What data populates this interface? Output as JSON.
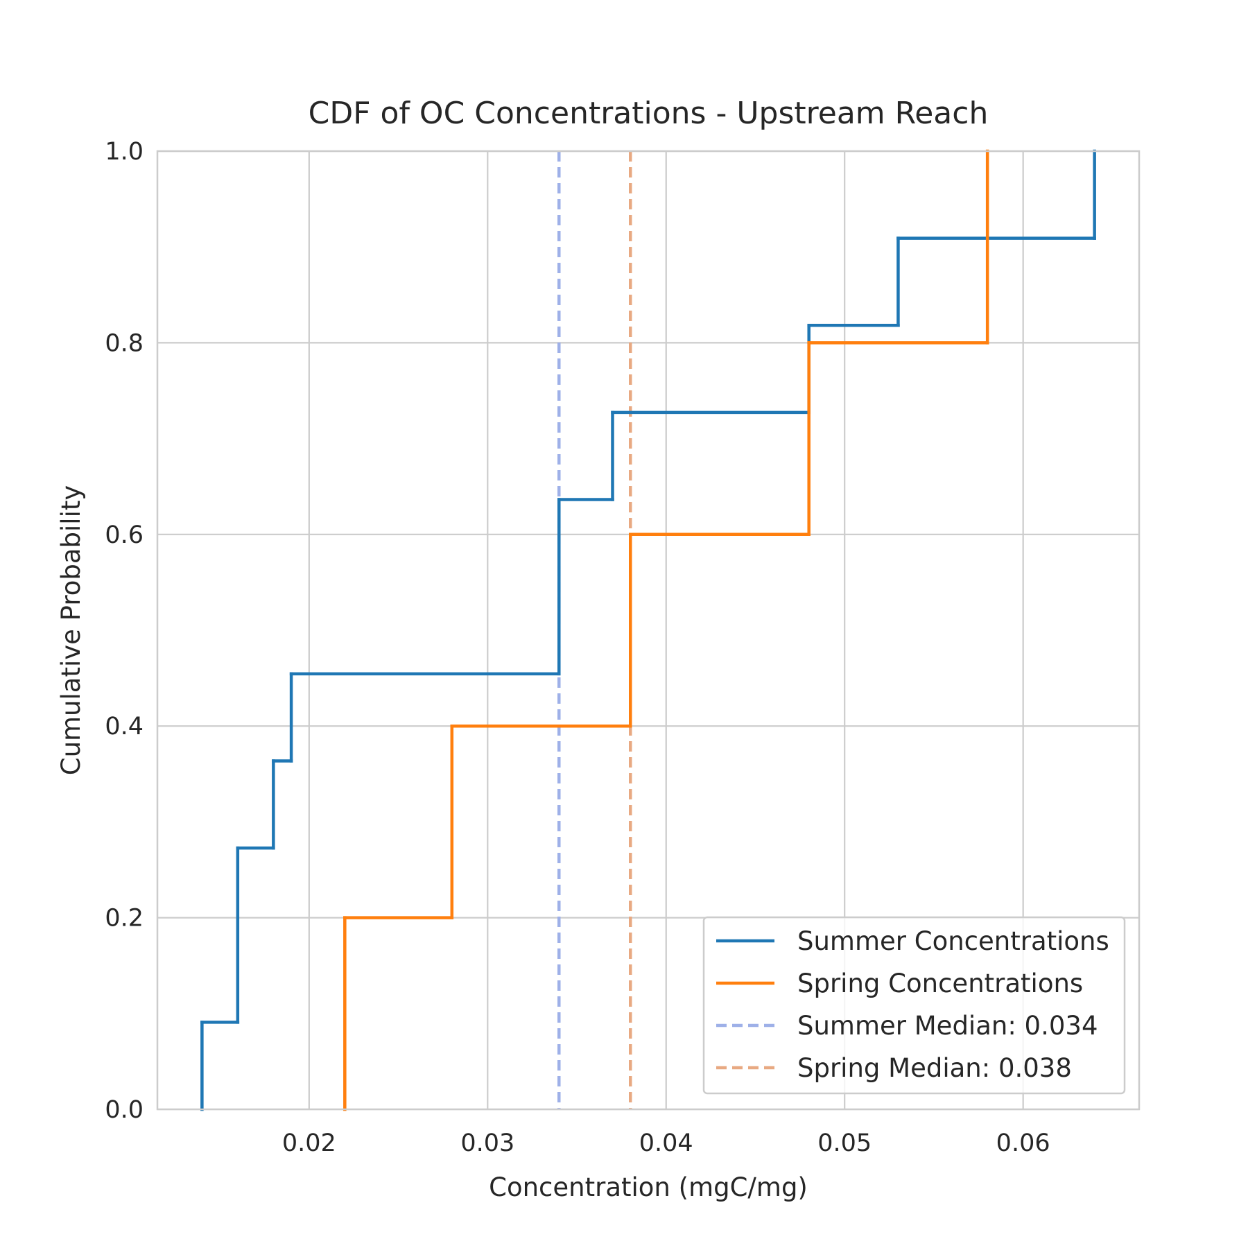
{
  "chart_data": {
    "type": "line",
    "title": "CDF of OC Concentrations - Upstream Reach",
    "xlabel": "Concentration (mgC/mg)",
    "ylabel": "Cumulative Probability",
    "xlim": [
      0.0115,
      0.0665
    ],
    "ylim": [
      0.0,
      1.0
    ],
    "xticks": [
      0.02,
      0.03,
      0.04,
      0.05,
      0.06
    ],
    "xtick_labels": [
      "0.02",
      "0.03",
      "0.04",
      "0.05",
      "0.06"
    ],
    "yticks": [
      0.0,
      0.2,
      0.4,
      0.6,
      0.8,
      1.0
    ],
    "ytick_labels": [
      "0.0",
      "0.2",
      "0.4",
      "0.6",
      "0.8",
      "1.0"
    ],
    "grid": true,
    "legend_position": "lower-right",
    "series": [
      {
        "name": "Summer Concentrations",
        "kind": "step",
        "color": "#1f77b4",
        "x": [
          0.014,
          0.016,
          0.018,
          0.019,
          0.034,
          0.037,
          0.048,
          0.053,
          0.064
        ],
        "y": [
          0.0909,
          0.2727,
          0.3636,
          0.4545,
          0.6364,
          0.7273,
          0.8182,
          0.9091,
          1.0
        ]
      },
      {
        "name": "Spring Concentrations",
        "kind": "step",
        "color": "#ff7f0e",
        "x": [
          0.022,
          0.028,
          0.038,
          0.048,
          0.058
        ],
        "y": [
          0.2,
          0.4,
          0.6,
          0.8,
          1.0
        ]
      }
    ],
    "reference_lines": [
      {
        "name": "Summer Median: 0.034",
        "x": 0.034,
        "color": "#9eb0e8",
        "style": "dashed"
      },
      {
        "name": "Spring Median: 0.038",
        "x": 0.038,
        "color": "#e8a982",
        "style": "dashed"
      }
    ]
  }
}
